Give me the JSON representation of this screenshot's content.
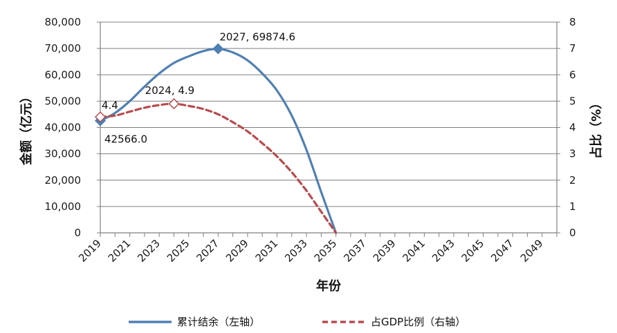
{
  "colors": {
    "series_1": "#4f7fb3",
    "series_2": "#b94a4c",
    "grid": "#7f7f7f",
    "axis": "#7f7f7f"
  },
  "chart_data": {
    "type": "line",
    "xlabel": "年份",
    "ylabel_left": "金额（亿元）",
    "ylabel_right": "占比（%）",
    "x_domain": [
      2019,
      2050
    ],
    "x_ticks": [
      "2019",
      "2021",
      "2023",
      "2025",
      "2027",
      "2029",
      "2031",
      "2033",
      "2035",
      "2037",
      "2039",
      "2041",
      "2043",
      "2045",
      "2047",
      "2049"
    ],
    "y_left_ticks": [
      "0",
      "10,000",
      "20,000",
      "30,000",
      "40,000",
      "50,000",
      "60,000",
      "70,000",
      "80,000"
    ],
    "y_right_ticks": [
      "0",
      "1",
      "2",
      "3",
      "4",
      "5",
      "6",
      "7",
      "8"
    ],
    "ylim_left": [
      0,
      80000
    ],
    "ylim_right": [
      0,
      8
    ],
    "grid": "horizontal",
    "legend_position": "bottom",
    "series": [
      {
        "name": "累计结余（左轴）",
        "axis": "left",
        "style": "solid",
        "x": [
          2019,
          2020,
          2021,
          2022,
          2023,
          2024,
          2025,
          2026,
          2027,
          2028,
          2029,
          2030,
          2031,
          2032,
          2033,
          2034,
          2035
        ],
        "values": [
          42566.0,
          45500,
          50000,
          55500,
          60500,
          64500,
          67000,
          69000,
          69874.6,
          68500,
          65500,
          60500,
          54000,
          44500,
          31500,
          15500,
          0
        ]
      },
      {
        "name": "占GDP比例（右轴）",
        "axis": "right",
        "style": "dashed",
        "x": [
          2019,
          2020,
          2021,
          2022,
          2023,
          2024,
          2025,
          2026,
          2027,
          2028,
          2029,
          2030,
          2031,
          2032,
          2033,
          2034,
          2035
        ],
        "values": [
          4.4,
          4.45,
          4.6,
          4.75,
          4.85,
          4.9,
          4.82,
          4.7,
          4.5,
          4.2,
          3.85,
          3.4,
          2.9,
          2.3,
          1.6,
          0.8,
          0
        ]
      }
    ],
    "markers": [
      {
        "series": 0,
        "x": 2019,
        "value": 42566.0,
        "fill": "#4f7fb3"
      },
      {
        "series": 0,
        "x": 2027,
        "value": 69874.6,
        "fill": "#4f7fb3"
      },
      {
        "series": 1,
        "x": 2019,
        "value": 4.4,
        "fill": "#ffffff"
      },
      {
        "series": 1,
        "x": 2024,
        "value": 4.9,
        "fill": "#ffffff"
      }
    ],
    "annotations": [
      {
        "text": "2027, 69874.6",
        "x": 2027,
        "value": 69874.6,
        "axis": "left",
        "pos": "above-right"
      },
      {
        "text": "2024, 4.9",
        "x": 2024,
        "value": 4.9,
        "axis": "right",
        "pos": "above"
      },
      {
        "text": "4.4",
        "x": 2019,
        "value": 4.4,
        "axis": "right",
        "pos": "above-right"
      },
      {
        "text": "42566.0",
        "x": 2019,
        "value": 42566.0,
        "axis": "left",
        "pos": "below-right"
      }
    ]
  }
}
